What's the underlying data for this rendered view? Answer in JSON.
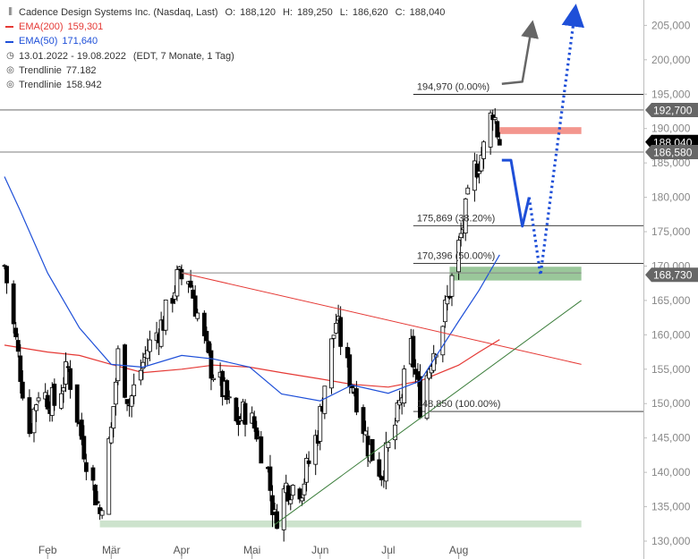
{
  "header": {
    "instrument": "Cadence Design Systems Inc. (Nasdaq, Last)",
    "ohlc": [
      {
        "label": "O:",
        "value": "188,120"
      },
      {
        "label": "H:",
        "value": "189,250"
      },
      {
        "label": "L:",
        "value": "186,620"
      },
      {
        "label": "C:",
        "value": "188,040"
      }
    ],
    "ema200": {
      "label": "EMA(200)",
      "value": "159,301",
      "color": "#e53935"
    },
    "ema50": {
      "label": "EMA(50)",
      "value": "171,640",
      "color": "#1e4fd8"
    },
    "range": "13.01.2022 - 19.08.2022",
    "range_info": "(EDT, 7 Monate, 1 Tag)",
    "trend1": {
      "label": "Trendlinie",
      "value": "77.182"
    },
    "trend2": {
      "label": "Trendlinie",
      "value": "158.942"
    }
  },
  "chart_data": {
    "type": "candlestick",
    "ylim": [
      130000,
      207000
    ],
    "y_ticks": [
      130000,
      135000,
      140000,
      145000,
      150000,
      155000,
      160000,
      165000,
      170000,
      175000,
      180000,
      185000,
      190000,
      195000,
      200000,
      205000
    ],
    "y_tick_labels": [
      "130,000",
      "135,000",
      "140,000",
      "145,000",
      "150,000",
      "155,000",
      "160,000",
      "165,000",
      "170,000",
      "175,000",
      "180,000",
      "185,000",
      "190,000",
      "195,000",
      "200,000",
      "205,000"
    ],
    "x_labels": [
      {
        "label": "Feb",
        "date": "2022-02-01"
      },
      {
        "label": "Mär",
        "date": "2022-03-01"
      },
      {
        "label": "Apr",
        "date": "2022-04-01"
      },
      {
        "label": "Mai",
        "date": "2022-05-02"
      },
      {
        "label": "Jun",
        "date": "2022-06-01"
      },
      {
        "label": "Jul",
        "date": "2022-07-01"
      },
      {
        "label": "Aug",
        "date": "2022-08-01"
      }
    ],
    "x_range": [
      "2022-01-13",
      "2022-08-19"
    ],
    "price_path": [
      [
        "2022-01-13",
        170000
      ],
      [
        "2022-01-18",
        159000
      ],
      [
        "2022-01-24",
        146000
      ],
      [
        "2022-01-28",
        152000
      ],
      [
        "2022-02-04",
        150000
      ],
      [
        "2022-02-10",
        155000
      ],
      [
        "2022-02-16",
        145000
      ],
      [
        "2022-02-24",
        134000
      ],
      [
        "2022-03-01",
        146000
      ],
      [
        "2022-03-04",
        157000
      ],
      [
        "2022-03-09",
        150000
      ],
      [
        "2022-03-17",
        158000
      ],
      [
        "2022-03-24",
        162000
      ],
      [
        "2022-03-30",
        168000
      ],
      [
        "2022-04-04",
        168500
      ],
      [
        "2022-04-08",
        163000
      ],
      [
        "2022-04-13",
        156000
      ],
      [
        "2022-04-19",
        152000
      ],
      [
        "2022-04-25",
        147000
      ],
      [
        "2022-04-29",
        149000
      ],
      [
        "2022-05-04",
        146000
      ],
      [
        "2022-05-09",
        140000
      ],
      [
        "2022-05-12",
        133000
      ],
      [
        "2022-05-17",
        138000
      ],
      [
        "2022-05-24",
        138000
      ],
      [
        "2022-05-31",
        146000
      ],
      [
        "2022-06-03",
        153000
      ],
      [
        "2022-06-08",
        162000
      ],
      [
        "2022-06-13",
        155000
      ],
      [
        "2022-06-17",
        151000
      ],
      [
        "2022-06-22",
        144000
      ],
      [
        "2022-06-28",
        140000
      ],
      [
        "2022-07-05",
        148000
      ],
      [
        "2022-07-11",
        158000
      ],
      [
        "2022-07-15",
        150000
      ],
      [
        "2022-07-20",
        157000
      ],
      [
        "2022-07-25",
        162000
      ],
      [
        "2022-07-29",
        168000
      ],
      [
        "2022-08-03",
        176000
      ],
      [
        "2022-08-08",
        184000
      ],
      [
        "2022-08-12",
        187000
      ],
      [
        "2022-08-16",
        193000
      ],
      [
        "2022-08-19",
        188040
      ]
    ],
    "ema200": [
      [
        "2022-01-13",
        158500
      ],
      [
        "2022-02-01",
        157500
      ],
      [
        "2022-02-15",
        157000
      ],
      [
        "2022-03-01",
        155700
      ],
      [
        "2022-03-15",
        154500
      ],
      [
        "2022-04-01",
        155000
      ],
      [
        "2022-04-15",
        155600
      ],
      [
        "2022-05-01",
        155300
      ],
      [
        "2022-05-15",
        154500
      ],
      [
        "2022-06-01",
        153600
      ],
      [
        "2022-06-15",
        152800
      ],
      [
        "2022-07-01",
        152400
      ],
      [
        "2022-07-15",
        153300
      ],
      [
        "2022-08-01",
        155600
      ],
      [
        "2022-08-10",
        157500
      ],
      [
        "2022-08-19",
        159301
      ]
    ],
    "ema50": [
      [
        "2022-01-13",
        183000
      ],
      [
        "2022-01-20",
        178000
      ],
      [
        "2022-02-01",
        169000
      ],
      [
        "2022-02-15",
        161000
      ],
      [
        "2022-03-01",
        155700
      ],
      [
        "2022-03-15",
        155300
      ],
      [
        "2022-04-01",
        157000
      ],
      [
        "2022-04-15",
        156500
      ],
      [
        "2022-05-01",
        155300
      ],
      [
        "2022-05-15",
        151400
      ],
      [
        "2022-06-01",
        150400
      ],
      [
        "2022-06-15",
        152700
      ],
      [
        "2022-07-01",
        151500
      ],
      [
        "2022-07-15",
        153300
      ],
      [
        "2022-08-01",
        162000
      ],
      [
        "2022-08-10",
        166500
      ],
      [
        "2022-08-19",
        171640
      ]
    ],
    "fibonacci": [
      {
        "label": "194,970 (0.00%)",
        "value": 194970
      },
      {
        "label": "175,869 (38.20%)",
        "value": 175869
      },
      {
        "label": "170,396 (50.00%)",
        "value": 170396
      },
      {
        "label": "148,850 (100.00%)",
        "value": 148850
      }
    ],
    "horizontal_lines": [
      192700,
      186580
    ],
    "price_tags": [
      {
        "label": "192,700",
        "value": 192700,
        "color": "#ffffff",
        "bg": "#666666"
      },
      {
        "label": "188,040",
        "value": 188040,
        "color": "#ffffff",
        "bg": "#000000"
      },
      {
        "label": "186,580",
        "value": 186580,
        "color": "#ffffff",
        "bg": "#666666"
      },
      {
        "label": "168,730",
        "value": 168730,
        "color": "#ffffff",
        "bg": "#666666"
      }
    ],
    "zones": [
      {
        "name": "resistance",
        "from": "2022-08-19",
        "to": "2022-09-24",
        "low": 189200,
        "high": 190200,
        "color": "#f28b82"
      },
      {
        "name": "support",
        "from": "2022-07-28",
        "to": "2022-09-24",
        "low": 167900,
        "high": 169900,
        "color": "#8fc18f"
      },
      {
        "name": "base",
        "from": "2022-02-24",
        "to": "2022-09-24",
        "low": 132000,
        "high": 133000,
        "color": "#c8e0c8"
      }
    ],
    "trendlines": [
      {
        "name": "resistance-trend",
        "from": [
          "2022-04-01",
          169000
        ],
        "to": [
          "2022-09-24",
          155700
        ],
        "color": "#e53935"
      },
      {
        "name": "support-trend",
        "from": [
          "2022-05-12",
          132400
        ],
        "to": [
          "2022-09-24",
          165000
        ],
        "color": "#3a7d3a"
      },
      {
        "name": "fib-origin",
        "from": [
          "2022-04-01",
          169000
        ],
        "to": [
          "2022-09-24",
          169000
        ],
        "color": "#888888"
      }
    ],
    "projections": [
      {
        "name": "bullish-arrow",
        "color": "#666666",
        "style": "solid",
        "points": [
          [
            "2022-08-20",
            196500
          ],
          [
            "2022-08-29",
            196800
          ],
          [
            "2022-09-02",
            204500
          ]
        ]
      },
      {
        "name": "bearish-path",
        "color": "#1e4fd8",
        "style": "solid",
        "points": [
          [
            "2022-08-20",
            185400
          ],
          [
            "2022-08-24",
            185400
          ],
          [
            "2022-08-29",
            175800
          ],
          [
            "2022-09-01",
            180000
          ]
        ]
      },
      {
        "name": "bearish-dotted",
        "color": "#1e4fd8",
        "style": "dotted",
        "points": [
          [
            "2022-09-01",
            180000
          ],
          [
            "2022-09-06",
            168700
          ],
          [
            "2022-09-12",
            184000
          ],
          [
            "2022-09-21",
            206500
          ]
        ]
      }
    ]
  }
}
